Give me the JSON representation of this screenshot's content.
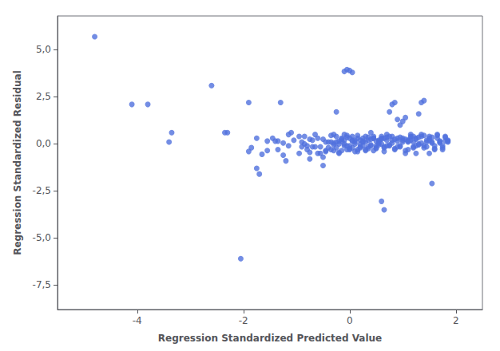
{
  "chart_data": {
    "type": "scatter",
    "xlabel": "Regression Standardized Predicted Value",
    "ylabel": "Regression Standardized Residual",
    "xlim": [
      -5.5,
      2.5
    ],
    "ylim": [
      -8.8,
      6.8
    ],
    "xticks": [
      -4,
      -2,
      0,
      2
    ],
    "yticks": [
      {
        "value": -7.5,
        "label": "-7,5"
      },
      {
        "value": -5.0,
        "label": "-5,0"
      },
      {
        "value": -2.5,
        "label": "-2,5"
      },
      {
        "value": 0.0,
        "label": "0,0"
      },
      {
        "value": 2.5,
        "label": "2,5"
      },
      {
        "value": 5.0,
        "label": "5,0"
      }
    ],
    "grid": false,
    "x": [
      -4.8,
      -4.1,
      -3.8,
      -3.4,
      -3.35,
      -2.6,
      -2.35,
      -2.3,
      -2.05,
      -1.9,
      -1.75,
      -1.7,
      -1.55,
      -1.4,
      -1.35,
      -1.25,
      -1.2,
      -1.15,
      -1.3,
      -1.9,
      -1.85,
      -1.75,
      -1.65,
      -1.55,
      -1.45,
      -1.35,
      -1.25,
      -1.15,
      -1.1,
      -1.05,
      -0.95,
      -0.95,
      -0.9,
      -0.9,
      -0.85,
      -0.85,
      -0.8,
      -0.8,
      -0.75,
      -0.75,
      -0.75,
      -0.7,
      -0.7,
      -0.65,
      -0.65,
      -0.6,
      -0.6,
      -0.55,
      -0.55,
      -0.5,
      -0.5,
      -0.5,
      -0.45,
      -0.45,
      -0.45,
      -0.4,
      -0.4,
      -0.35,
      -0.35,
      -0.35,
      -0.3,
      -0.3,
      -0.3,
      -0.3,
      -0.25,
      -0.25,
      -0.25,
      -0.25,
      -0.2,
      -0.2,
      -0.2,
      -0.2,
      -0.15,
      -0.15,
      -0.15,
      -0.15,
      -0.1,
      -0.1,
      -0.1,
      -0.1,
      -0.05,
      -0.05,
      -0.05,
      -0.05,
      -0.1,
      -0.05,
      0.0,
      0.05,
      0.0,
      0.0,
      0.0,
      0.0,
      0.05,
      0.05,
      0.05,
      0.05,
      0.1,
      0.1,
      0.1,
      0.1,
      0.15,
      0.15,
      0.15,
      0.15,
      0.2,
      0.2,
      0.2,
      0.2,
      0.25,
      0.25,
      0.25,
      0.25,
      0.3,
      0.3,
      0.3,
      0.3,
      0.35,
      0.35,
      0.35,
      0.35,
      0.4,
      0.4,
      0.4,
      0.4,
      0.45,
      0.45,
      0.45,
      0.45,
      0.5,
      0.5,
      0.5,
      0.5,
      0.55,
      0.55,
      0.55,
      0.55,
      0.6,
      0.6,
      0.6,
      0.6,
      0.6,
      0.65,
      0.65,
      0.65,
      0.65,
      0.65,
      0.7,
      0.7,
      0.7,
      0.7,
      0.75,
      0.75,
      0.75,
      0.75,
      0.8,
      0.8,
      0.8,
      0.8,
      0.85,
      0.85,
      0.85,
      0.85,
      0.9,
      0.9,
      0.9,
      0.9,
      0.95,
      0.95,
      0.95,
      0.95,
      1.0,
      1.0,
      1.0,
      1.0,
      1.05,
      1.05,
      1.05,
      1.05,
      1.1,
      1.1,
      1.1,
      1.1,
      1.15,
      1.15,
      1.15,
      1.15,
      1.2,
      1.2,
      1.2,
      1.2,
      1.25,
      1.25,
      1.25,
      1.25,
      1.3,
      1.3,
      1.3,
      1.3,
      1.35,
      1.35,
      1.35,
      1.35,
      1.4,
      1.4,
      1.4,
      1.4,
      1.45,
      1.45,
      1.45,
      1.5,
      1.5,
      1.5,
      1.5,
      1.55,
      1.55,
      1.55,
      1.55,
      1.6,
      1.6,
      1.6,
      1.65,
      1.65,
      1.65,
      1.7,
      1.7,
      1.7,
      1.75,
      1.75,
      1.75,
      1.8,
      1.8,
      1.8,
      1.85,
      1.85,
      1.85
    ],
    "values": [
      5.7,
      2.1,
      2.1,
      0.1,
      0.6,
      3.1,
      0.6,
      0.6,
      -6.1,
      2.2,
      -1.3,
      -1.6,
      0.15,
      0.15,
      -0.3,
      -0.6,
      -0.9,
      0.5,
      2.2,
      -0.4,
      -0.2,
      0.3,
      -0.55,
      -0.35,
      0.3,
      0.15,
      0.05,
      -0.1,
      0.6,
      0.2,
      0.4,
      -0.5,
      -0.15,
      0.1,
      0.0,
      0.4,
      -0.1,
      -0.3,
      -0.45,
      -0.8,
      0.25,
      0.2,
      -0.15,
      -0.15,
      0.5,
      0.3,
      -0.5,
      -0.5,
      -0.15,
      -0.7,
      -1.15,
      0.25,
      -0.35,
      0.1,
      -0.4,
      -0.2,
      0.1,
      0.1,
      -0.3,
      0.45,
      0.5,
      0.05,
      -0.05,
      -0.35,
      1.7,
      0.4,
      -0.2,
      0.1,
      0.0,
      -0.5,
      0.15,
      -0.45,
      0.15,
      0.25,
      -0.35,
      0.3,
      0.5,
      -0.1,
      0.2,
      0.0,
      -0.3,
      0.35,
      -0.1,
      0.45,
      3.85,
      3.95,
      3.9,
      3.8,
      -0.1,
      -0.25,
      0.3,
      -0.3,
      0.4,
      0.15,
      -0.2,
      0.2,
      0.2,
      -0.4,
      0.1,
      0.0,
      -0.4,
      0.3,
      -0.3,
      0.45,
      0.0,
      -0.15,
      0.2,
      -0.2,
      0.3,
      0.1,
      -0.1,
      0.15,
      0.1,
      -0.35,
      0.4,
      -0.3,
      -0.25,
      0.2,
      -0.15,
      0.35,
      0.6,
      -0.1,
      0.25,
      -0.05,
      0.3,
      0.4,
      -0.35,
      0.3,
      -0.1,
      -0.2,
      0.15,
      -0.25,
      0.15,
      0.05,
      -0.05,
      0.2,
      0.4,
      0.3,
      0.25,
      0.0,
      -3.05,
      -0.2,
      -0.4,
      -0.15,
      0.3,
      -3.5,
      0.5,
      0.2,
      0.35,
      -0.1,
      1.7,
      -0.1,
      -0.05,
      0.4,
      2.1,
      0.4,
      0.2,
      0.05,
      2.2,
      -0.3,
      -0.25,
      0.25,
      1.3,
      0.15,
      0.3,
      -0.15,
      1.0,
      -0.15,
      -0.1,
      0.35,
      1.2,
      0.3,
      0.2,
      0.1,
      1.4,
      -0.5,
      -0.35,
      0.25,
      0.2,
      0.1,
      0.15,
      -0.3,
      0.5,
      0.4,
      0.35,
      0.2,
      0.1,
      -0.2,
      -0.15,
      0.4,
      -0.5,
      0.3,
      0.25,
      -0.1,
      1.6,
      0.0,
      -0.05,
      0.35,
      2.2,
      0.5,
      0.4,
      0.05,
      2.3,
      -0.1,
      -0.2,
      0.45,
      0.2,
      0.1,
      -0.15,
      -0.5,
      0.4,
      0.3,
      0.2,
      -2.1,
      0.1,
      0.05,
      0.35,
      -0.3,
      -0.25,
      -0.1,
      0.5,
      0.45,
      0.3,
      0.15,
      0.05,
      0.1,
      -0.1,
      -0.2,
      -0.3,
      0.35,
      0.15,
      0.4,
      0.2,
      0.1,
      0.15
    ]
  }
}
